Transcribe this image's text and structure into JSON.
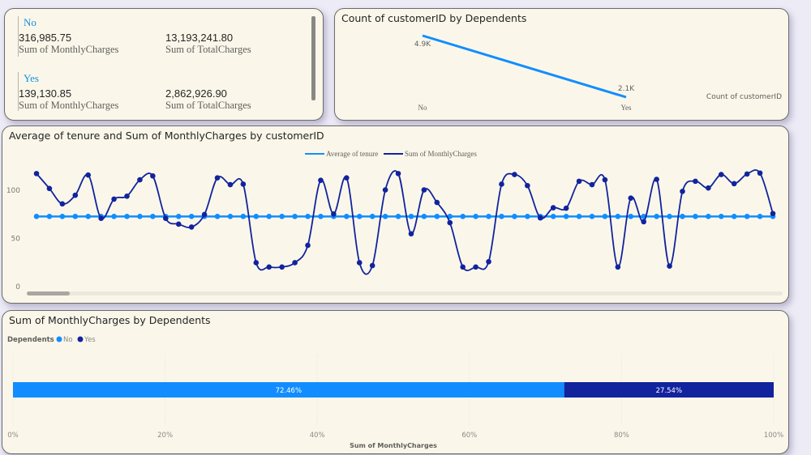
{
  "card_summary": {
    "groups": [
      {
        "label": "No",
        "monthly": "316,985.75",
        "monthly_label": "Sum of MonthlyCharges",
        "total": "13,193,241.80",
        "total_label": "Sum of TotalCharges"
      },
      {
        "label": "Yes",
        "monthly": "139,130.85",
        "monthly_label": "Sum of MonthlyCharges",
        "total": "2,862,926.90",
        "total_label": "Sum of TotalCharges"
      }
    ]
  },
  "colors": {
    "light_blue": "#118dff",
    "dark_blue": "#12239e",
    "card_bg": "#faf7ea",
    "page_bg": "#ecebf6"
  },
  "chart_data": [
    {
      "type": "line",
      "title": "Count of customerID by Dependents",
      "categories": [
        "No",
        "Yes"
      ],
      "values": [
        4900,
        2100
      ],
      "data_labels": [
        "4.9K",
        "2.1K"
      ],
      "legend": "Count of customerID",
      "legend_position": "right",
      "color": "#118dff"
    },
    {
      "type": "line",
      "title": "Average of tenure and Sum of MonthlyCharges by customerID",
      "legend_position": "top-center",
      "ylim": [
        0,
        125
      ],
      "yticks": [
        "0",
        "50",
        "100"
      ],
      "ytick_values": [
        0,
        50,
        100
      ],
      "grid": false,
      "series": [
        {
          "name": "Average of tenure",
          "color": "#118dff",
          "values": [
            72,
            72,
            72,
            72,
            72,
            72,
            72,
            72,
            72,
            72,
            72,
            72,
            72,
            72,
            72,
            72,
            72,
            72,
            72,
            72,
            72,
            72,
            72,
            72,
            72,
            72,
            72,
            72,
            72,
            72,
            72,
            72,
            72,
            72,
            72,
            72,
            72,
            72,
            72,
            72,
            72,
            72,
            72,
            72,
            72,
            72,
            72,
            72,
            72,
            72,
            72,
            72,
            72,
            72,
            72,
            72,
            72,
            72
          ]
        },
        {
          "name": "Sum of MonthlyCharges",
          "color": "#12239e",
          "values": [
            116.5,
            101,
            85,
            94,
            115,
            70,
            90,
            93,
            110,
            114,
            70,
            64,
            61,
            74,
            112,
            105,
            105.5,
            24,
            19.5,
            19.5,
            24,
            42,
            109.5,
            74.5,
            112,
            24,
            21,
            99.5,
            116.5,
            54,
            99.5,
            86.5,
            65.5,
            19.5,
            19.5,
            25,
            105.5,
            115.5,
            104,
            70.5,
            81,
            80.5,
            108.5,
            105,
            110,
            19.5,
            91,
            66.5,
            110.5,
            20.5,
            98,
            108.5,
            101.5,
            115.5,
            106,
            116,
            117,
            75
          ]
        }
      ]
    },
    {
      "type": "bar",
      "orientation": "horizontal-100%-stacked",
      "title": "Sum of MonthlyCharges by Dependents",
      "legend_title": "Dependents",
      "legend_position": "top-left",
      "series": [
        {
          "name": "No",
          "value": 72.46,
          "label": "72.46%",
          "color": "#118dff"
        },
        {
          "name": "Yes",
          "value": 27.54,
          "label": "27.54%",
          "color": "#12239e"
        }
      ],
      "xticks": [
        "0%",
        "20%",
        "40%",
        "60%",
        "80%",
        "100%"
      ],
      "xlim": [
        0,
        100
      ],
      "xlabel": "Sum of MonthlyCharges"
    }
  ]
}
